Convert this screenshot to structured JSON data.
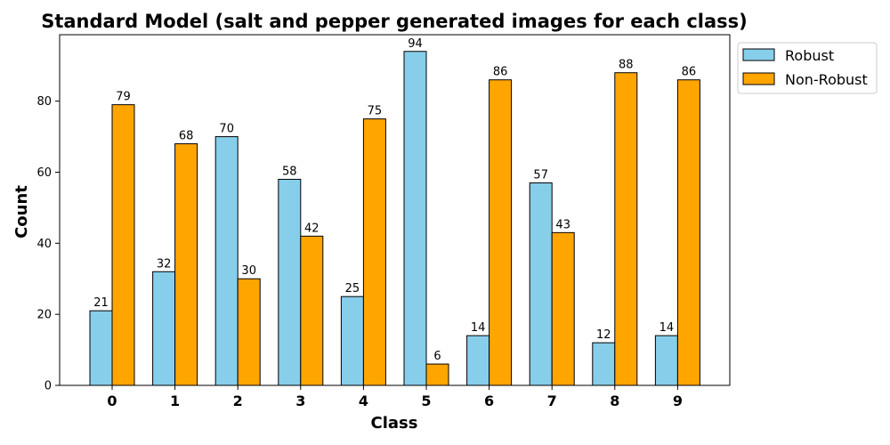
{
  "chart_data": {
    "type": "bar",
    "title": "Standard Model (salt and pepper generated images for each class)",
    "xlabel": "Class",
    "ylabel": "Count",
    "categories": [
      "0",
      "1",
      "2",
      "3",
      "4",
      "5",
      "6",
      "7",
      "8",
      "9"
    ],
    "series": [
      {
        "name": "Robust",
        "color": "#87ceeb",
        "values": [
          21,
          32,
          70,
          58,
          25,
          94,
          14,
          57,
          12,
          14
        ]
      },
      {
        "name": "Non-Robust",
        "color": "#ffa500",
        "values": [
          79,
          68,
          30,
          42,
          75,
          6,
          86,
          43,
          88,
          86
        ]
      }
    ],
    "ylim": [
      0,
      98.7
    ],
    "yticks": [
      0,
      20,
      40,
      60,
      80
    ],
    "grid": false,
    "legend_position": "outside-top-right",
    "data_labels": true
  }
}
